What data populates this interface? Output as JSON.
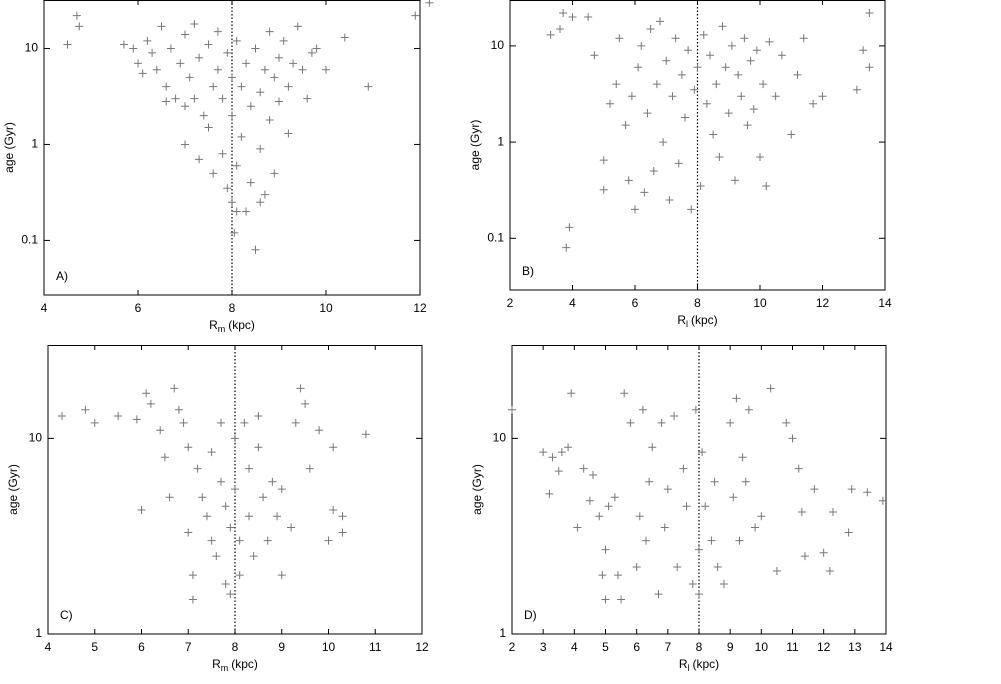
{
  "chart_data": [
    {
      "type": "scatter",
      "annotation": "A)",
      "ylabel": "age (Gyr)",
      "xlabel": {
        "text": "R",
        "sub": "m",
        "unit": "(kpc)"
      },
      "xlim": [
        4,
        12
      ],
      "xticks": [
        4,
        6,
        8,
        10,
        12
      ],
      "ylim": [
        0.027,
        32
      ],
      "yticks": [
        0.1,
        1,
        10
      ],
      "log_y": true,
      "vline": 8,
      "color": "#777777",
      "x": [
        4.5,
        4.7,
        4.75,
        11.9,
        12.2,
        10.9,
        10.4,
        5.7,
        5.9,
        6.0,
        6.1,
        6.2,
        6.3,
        6.4,
        6.5,
        6.6,
        6.7,
        6.8,
        6.9,
        7.0,
        7.0,
        7.1,
        7.2,
        7.2,
        7.3,
        7.4,
        7.5,
        7.5,
        7.6,
        7.6,
        7.7,
        7.7,
        7.8,
        7.8,
        7.9,
        7.9,
        8.0,
        8.0,
        8.0,
        8.05,
        8.1,
        8.1,
        8.2,
        8.2,
        8.3,
        8.3,
        8.4,
        8.4,
        8.5,
        8.5,
        8.6,
        8.6,
        8.7,
        8.7,
        8.8,
        8.8,
        8.9,
        8.9,
        9.0,
        9.0,
        9.1,
        9.2,
        9.2,
        9.3,
        9.4,
        9.5,
        9.6,
        9.7,
        9.8,
        10.0,
        7.0,
        6.6,
        8.6,
        8.1,
        7.3
      ],
      "values": [
        11,
        22,
        17,
        22,
        30,
        4,
        13,
        11,
        10,
        7,
        5.5,
        12,
        9,
        6,
        17,
        4,
        10,
        3,
        7,
        14,
        2.5,
        5,
        3,
        18,
        8,
        2,
        11,
        1.5,
        4,
        0.5,
        6,
        15,
        3,
        0.8,
        9,
        0.35,
        5,
        2,
        0.25,
        0.12,
        12,
        0.6,
        4,
        1.2,
        7,
        0.2,
        2.5,
        0.4,
        10,
        0.08,
        3.5,
        0.9,
        6,
        0.3,
        15,
        1.8,
        5,
        0.5,
        8,
        2.8,
        12,
        4,
        1.3,
        7,
        17,
        6,
        3,
        9,
        10,
        6,
        1.0,
        2.8,
        0.25,
        0.2,
        0.7
      ]
    },
    {
      "type": "scatter",
      "annotation": "B)",
      "ylabel": "age (Gyr)",
      "xlabel": {
        "text": "R",
        "sub": "l",
        "unit": "(kpc)"
      },
      "xlim": [
        2,
        14
      ],
      "xticks": [
        2,
        4,
        6,
        8,
        10,
        12,
        14
      ],
      "ylim": [
        0.029,
        30
      ],
      "yticks": [
        0.1,
        1,
        10
      ],
      "log_y": true,
      "vline": 8,
      "color": "#777777",
      "x": [
        3.3,
        3.6,
        3.7,
        3.9,
        3.8,
        4.0,
        4.5,
        4.7,
        5.0,
        5.0,
        5.2,
        5.4,
        5.5,
        5.7,
        5.8,
        5.9,
        6.0,
        6.1,
        6.2,
        6.3,
        6.4,
        6.5,
        6.6,
        6.7,
        6.8,
        6.9,
        7.0,
        7.1,
        7.2,
        7.3,
        7.4,
        7.5,
        7.6,
        7.7,
        7.8,
        7.9,
        8.0,
        8.1,
        8.2,
        8.3,
        8.4,
        8.5,
        8.6,
        8.7,
        8.8,
        8.9,
        9.0,
        9.1,
        9.2,
        9.3,
        9.4,
        9.5,
        9.6,
        9.7,
        9.8,
        9.9,
        10.0,
        10.1,
        10.2,
        10.3,
        10.5,
        10.7,
        11.0,
        11.2,
        11.4,
        11.7,
        12.0,
        13.1,
        13.3,
        13.5,
        13.5
      ],
      "values": [
        13,
        15,
        22,
        0.13,
        0.08,
        20,
        20,
        8,
        0.65,
        0.32,
        2.5,
        4,
        12,
        1.5,
        0.4,
        3,
        0.2,
        6,
        10,
        0.3,
        2,
        15,
        0.5,
        4,
        18,
        1,
        7,
        0.25,
        3,
        12,
        0.6,
        5,
        1.8,
        9,
        0.2,
        3.5,
        6,
        0.35,
        13,
        2.5,
        8,
        1.2,
        4,
        0.7,
        16,
        6,
        2,
        10,
        0.4,
        5,
        3,
        12,
        1.5,
        7,
        2.2,
        9,
        0.7,
        4,
        0.35,
        11,
        3,
        8,
        1.2,
        5,
        12,
        2.5,
        3,
        3.5,
        9,
        6,
        22
      ]
    },
    {
      "type": "scatter",
      "annotation": "C)",
      "ylabel": "age (Gyr)",
      "xlabel": {
        "text": "R",
        "sub": "m",
        "unit": "(kpc)"
      },
      "xlim": [
        4,
        12
      ],
      "xticks": [
        4,
        5,
        6,
        7,
        8,
        9,
        10,
        11,
        12
      ],
      "ylim": [
        1,
        30
      ],
      "yticks": [
        1,
        10
      ],
      "log_y": true,
      "vline": 8,
      "color": "#777777",
      "x": [
        4.3,
        4.8,
        5.0,
        5.5,
        5.9,
        6.0,
        6.1,
        6.2,
        6.4,
        6.5,
        6.6,
        6.7,
        6.8,
        6.9,
        7.0,
        7.0,
        7.1,
        7.1,
        7.2,
        7.3,
        7.4,
        7.5,
        7.5,
        7.6,
        7.7,
        7.7,
        7.8,
        7.8,
        7.9,
        7.9,
        8.0,
        8.0,
        8.1,
        8.1,
        8.2,
        8.3,
        8.3,
        8.4,
        8.5,
        8.5,
        8.6,
        8.7,
        8.8,
        8.9,
        9.0,
        9.0,
        9.2,
        9.3,
        9.4,
        9.5,
        9.6,
        9.8,
        10.0,
        10.1,
        10.1,
        10.3,
        10.3,
        10.8
      ],
      "values": [
        13,
        14,
        12,
        13,
        12.5,
        4.3,
        17,
        15,
        11,
        8,
        5,
        18,
        14,
        12,
        9,
        3.3,
        2,
        1.5,
        7,
        5,
        4,
        3,
        8.5,
        2.5,
        6,
        12,
        4.5,
        1.8,
        3.5,
        1.6,
        10,
        5.5,
        3,
        2,
        12,
        7,
        4,
        2.5,
        9,
        13,
        5,
        3,
        6,
        4,
        5.5,
        2,
        3.5,
        12,
        18,
        15,
        7,
        11,
        3,
        4.3,
        9,
        3.3,
        4,
        10.5
      ]
    },
    {
      "type": "scatter",
      "annotation": "D)",
      "ylabel": "age (Gyr)",
      "xlabel": {
        "text": "R",
        "sub": "l",
        "unit": "(kpc)"
      },
      "xlim": [
        2,
        14
      ],
      "xticks": [
        2,
        3,
        4,
        5,
        6,
        7,
        8,
        9,
        10,
        11,
        12,
        13,
        14
      ],
      "ylim": [
        1,
        30
      ],
      "yticks": [
        1,
        10
      ],
      "log_y": true,
      "vline": 8,
      "color": "#777777",
      "x": [
        2.0,
        3.0,
        3.2,
        3.3,
        3.5,
        3.6,
        3.8,
        3.9,
        4.1,
        4.3,
        4.5,
        4.6,
        4.8,
        4.9,
        5.0,
        5.0,
        5.1,
        5.3,
        5.4,
        5.5,
        5.6,
        5.8,
        6.0,
        6.1,
        6.2,
        6.3,
        6.4,
        6.5,
        6.7,
        6.8,
        6.9,
        7.0,
        7.2,
        7.3,
        7.5,
        7.6,
        7.8,
        7.9,
        8.0,
        8.0,
        8.1,
        8.2,
        8.4,
        8.5,
        8.6,
        8.8,
        9.0,
        9.1,
        9.2,
        9.3,
        9.4,
        9.5,
        9.6,
        9.8,
        10.0,
        10.3,
        10.5,
        10.8,
        11.0,
        11.2,
        11.3,
        11.4,
        11.7,
        12.0,
        12.2,
        12.3,
        12.8,
        12.9,
        13.4,
        13.9
      ],
      "values": [
        14,
        8.5,
        5.2,
        8,
        6.8,
        8.5,
        9,
        17,
        3.5,
        7,
        4.8,
        6.5,
        4,
        2,
        2.7,
        1.5,
        4.5,
        5,
        2,
        1.5,
        17,
        12,
        2.2,
        4,
        14,
        3,
        6,
        9,
        1.6,
        12,
        3.5,
        5.5,
        13,
        2.2,
        7,
        4.5,
        1.8,
        14,
        2.7,
        1.6,
        8.5,
        4.5,
        3,
        6,
        2.2,
        1.8,
        12,
        5,
        16,
        3,
        8,
        6,
        14,
        3.5,
        4,
        18,
        2.1,
        12,
        10,
        7,
        4.2,
        2.5,
        5.5,
        2.6,
        2.1,
        4.2,
        3.3,
        5.5,
        5.3,
        4.8
      ]
    }
  ]
}
